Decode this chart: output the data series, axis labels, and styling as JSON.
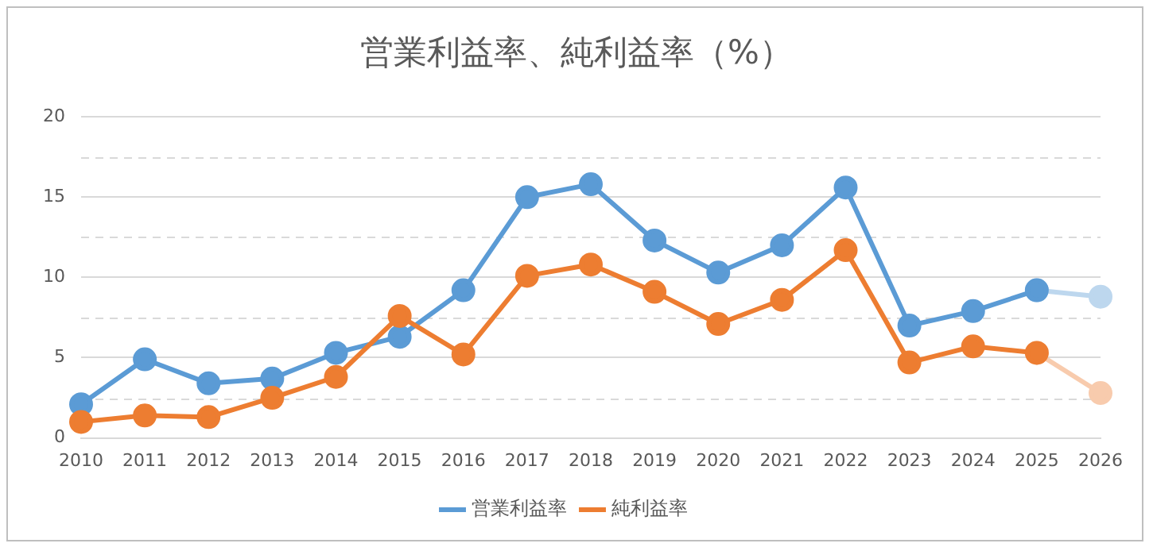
{
  "chart_data": {
    "type": "line",
    "title": "営業利益率、純利益率（%）",
    "categories": [
      "2010",
      "2011",
      "2012",
      "2013",
      "2014",
      "2015",
      "2016",
      "2017",
      "2018",
      "2019",
      "2020",
      "2021",
      "2022",
      "2023",
      "2024",
      "2025",
      "2026"
    ],
    "series": [
      {
        "color": "#bdd7ee",
        "values": [
          null,
          null,
          null,
          null,
          null,
          null,
          null,
          null,
          null,
          null,
          null,
          null,
          null,
          null,
          null,
          9.2,
          8.8
        ]
      },
      {
        "color": "#f8cbad",
        "values": [
          null,
          null,
          null,
          null,
          null,
          null,
          null,
          null,
          null,
          null,
          null,
          null,
          null,
          null,
          null,
          5.3,
          2.8
        ]
      },
      {
        "name": "営業利益率",
        "color": "#5b9bd5",
        "values": [
          2.1,
          4.9,
          3.4,
          3.7,
          5.3,
          6.3,
          9.2,
          15.0,
          15.8,
          12.3,
          10.3,
          12.0,
          15.6,
          7.0,
          7.9,
          9.2,
          null
        ]
      },
      {
        "name": "純利益率",
        "color": "#ed7d31",
        "values": [
          1.0,
          1.4,
          1.3,
          2.5,
          3.8,
          7.6,
          5.2,
          10.1,
          10.8,
          9.1,
          7.1,
          8.6,
          11.7,
          4.7,
          5.7,
          5.3,
          null
        ]
      }
    ],
    "ylim": [
      0,
      20
    ],
    "yticks": [
      0,
      {
        "value": 2.5,
        "label": null
      },
      5,
      {
        "value": 7.5,
        "label": null
      },
      10,
      {
        "value": 12.5,
        "label": null
      },
      15,
      {
        "value": 17.5,
        "label": null
      },
      20
    ],
    "grid": "y",
    "legend": "bottom",
    "marker": "circle",
    "line_style": "solid"
  }
}
